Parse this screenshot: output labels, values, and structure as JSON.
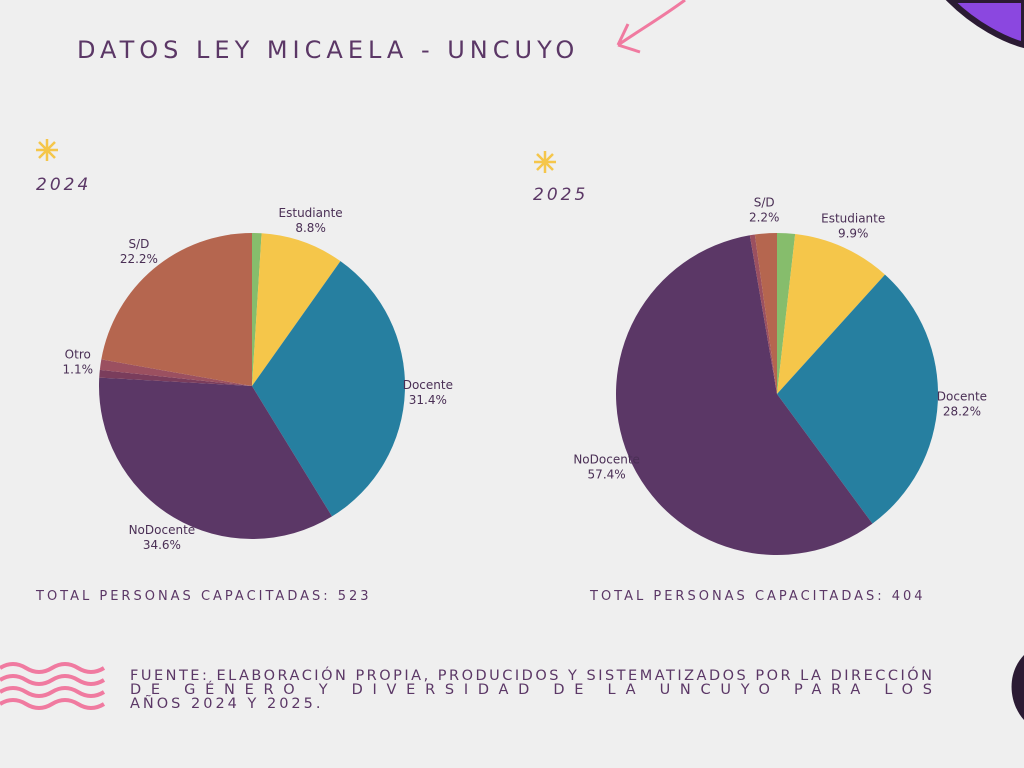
{
  "title": "DATOS LEY MICAELA - UNCUYO",
  "source": "FUENTE: ELABORACIÓN PROPIA, PRODUCIDOS Y SISTEMATIZADOS POR LA DIRECCIÓN DE GÉNERO Y DIVERSIDAD DE LA UNCUYO PARA LOS AÑOS 2024 Y 2025.",
  "chart_data": [
    {
      "type": "pie",
      "subtitle": "2024",
      "footer": "TOTAL PERSONAS CAPACITADAS: 523",
      "categories": [
        null,
        "Estudiante",
        "Docente",
        "NoDocente",
        null,
        "Otro",
        "S/D"
      ],
      "values": [
        1.0,
        8.8,
        31.4,
        34.6,
        0.8,
        1.1,
        22.2
      ],
      "value_labels": [
        null,
        "8.8%",
        "31.4%",
        "34.6%",
        null,
        "1.1%",
        "22.2%"
      ],
      "colors": [
        "#86bd6c",
        "#f5c64a",
        "#267fa0",
        "#5b3766",
        "#7a3d5c",
        "#9b5060",
        "#b5664f"
      ]
    },
    {
      "type": "pie",
      "subtitle": "2025",
      "footer": "TOTAL PERSONAS CAPACITADAS: 404",
      "categories": [
        null,
        "Estudiante",
        "Docente",
        "NoDocente",
        null,
        "S/D"
      ],
      "values": [
        1.8,
        9.9,
        28.2,
        57.4,
        0.5,
        2.2
      ],
      "value_labels": [
        null,
        "9.9%",
        "28.2%",
        "57.4%",
        null,
        "2.2%"
      ],
      "colors": [
        "#86bd6c",
        "#f5c64a",
        "#267fa0",
        "#5b3766",
        "#9b5060",
        "#b5664f"
      ]
    }
  ]
}
